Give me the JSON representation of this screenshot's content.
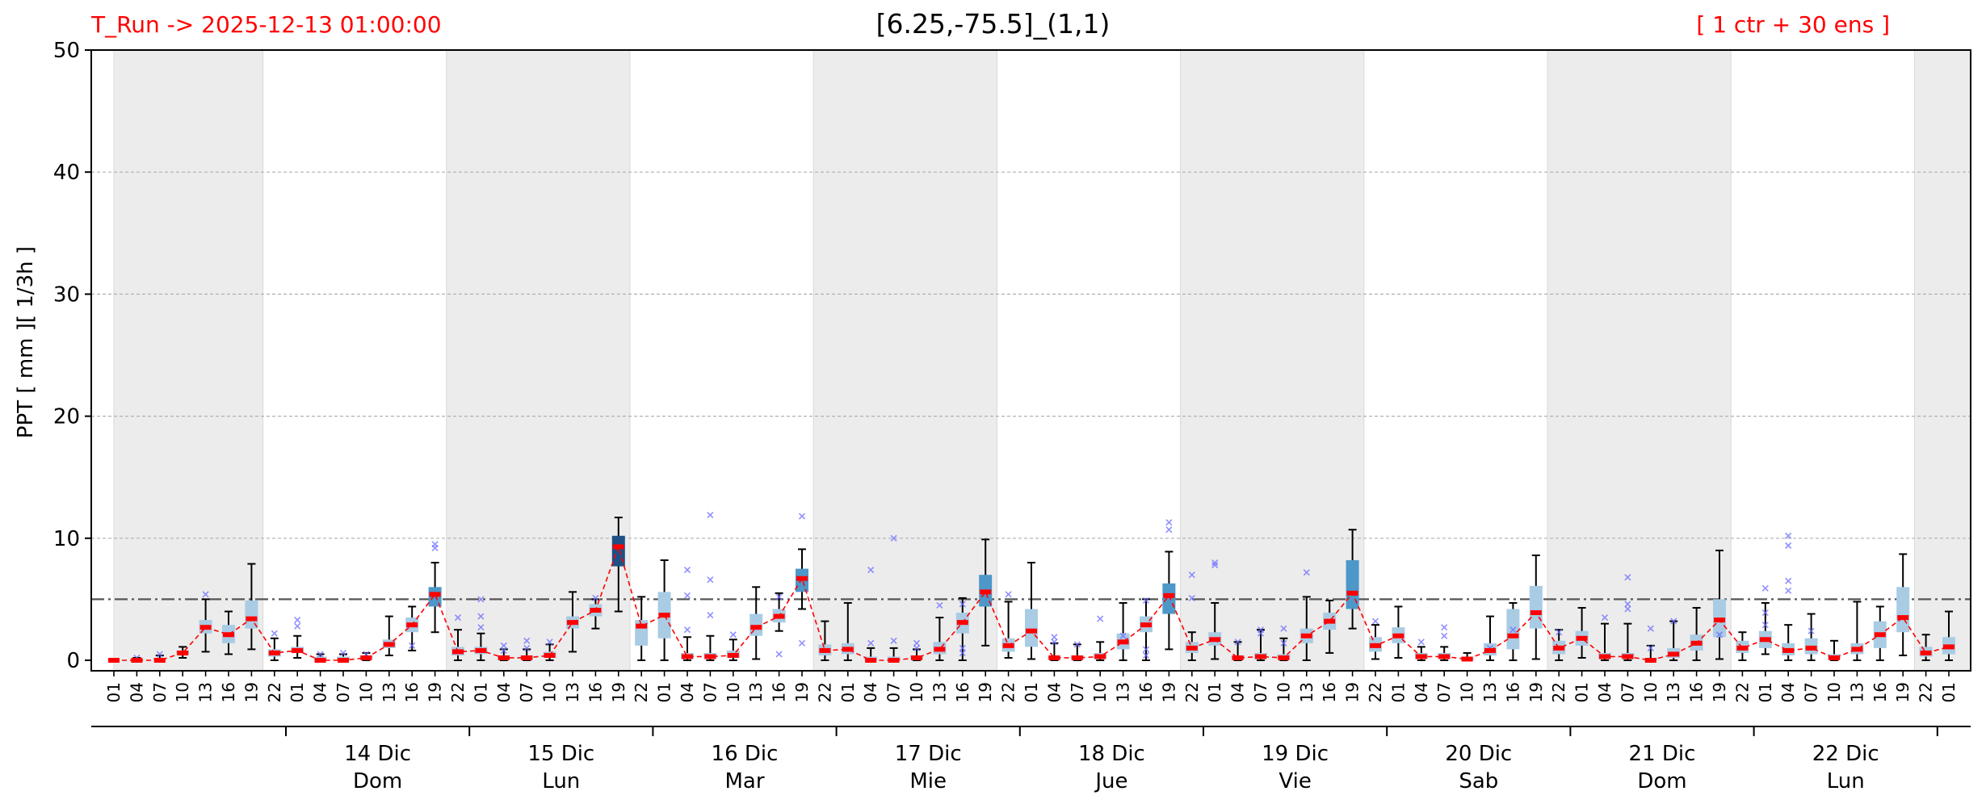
{
  "header": {
    "left": "T_Run -> 2025-12-13  01:00:00",
    "center": "[6.25,-75.5]_(1,1)",
    "right": "[ 1 ctr + 30 ens ]"
  },
  "colors": {
    "median_line": "#ff0000",
    "median_mark": "#ff0000",
    "whisker": "#000000",
    "outlier": "#6b6bff",
    "threshold": "#555555",
    "night_shade": "#ececec",
    "box_light": "#a9cce4",
    "box_mid": "#4d97c9",
    "box_dark": "#1e4f85",
    "header_text": "#ff0000"
  },
  "chart_data": {
    "type": "box",
    "ylabel": "PPT  [ mm ][ 1/3h ]",
    "ylim": [
      0,
      50
    ],
    "yticks": [
      0,
      10,
      20,
      30,
      40,
      50
    ],
    "grid": true,
    "threshold": 5,
    "hours": [
      "01",
      "04",
      "07",
      "10",
      "13",
      "16",
      "19",
      "22"
    ],
    "days": [
      {
        "date": "",
        "weekday": ""
      },
      {
        "date": "14 Dic",
        "weekday": "Dom"
      },
      {
        "date": "15 Dic",
        "weekday": "Lun"
      },
      {
        "date": "16 Dic",
        "weekday": "Mar"
      },
      {
        "date": "17 Dic",
        "weekday": "Mie"
      },
      {
        "date": "18 Dic",
        "weekday": "Jue"
      },
      {
        "date": "19 Dic",
        "weekday": "Vie"
      },
      {
        "date": "20 Dic",
        "weekday": "Sab"
      },
      {
        "date": "21 Dic",
        "weekday": "Dom"
      },
      {
        "date": "22 Dic",
        "weekday": "Lun"
      }
    ],
    "final_step": "01",
    "median": [
      0.0,
      0.0,
      0.0,
      0.6,
      2.7,
      2.1,
      3.4,
      0.6,
      0.8,
      0.0,
      0.0,
      0.2,
      1.3,
      2.9,
      5.4,
      0.7,
      0.8,
      0.2,
      0.2,
      0.4,
      3.1,
      4.1,
      9.3,
      2.8,
      3.7,
      0.3,
      0.3,
      0.4,
      2.7,
      3.6,
      6.7,
      0.8,
      0.9,
      0.0,
      0.0,
      0.2,
      0.9,
      3.1,
      5.6,
      1.2,
      2.4,
      0.2,
      0.2,
      0.3,
      1.5,
      2.9,
      5.3,
      1.0,
      1.7,
      0.2,
      0.3,
      0.2,
      2.0,
      3.2,
      5.5,
      1.2,
      2.0,
      0.3,
      0.3,
      0.1,
      0.8,
      2.0,
      3.9,
      1.0,
      1.8,
      0.3,
      0.3,
      0.0,
      0.5,
      1.4,
      3.3,
      1.0,
      1.7,
      0.8,
      1.0,
      0.2,
      0.9,
      2.1,
      3.5,
      0.6,
      1.1
    ],
    "whisker_low": [
      0,
      0,
      0,
      0.2,
      0.7,
      0.5,
      0.9,
      0,
      0.2,
      0,
      0,
      0,
      0.4,
      0.8,
      2.3,
      0,
      0,
      0,
      0,
      0,
      0.7,
      2.6,
      4.0,
      0,
      0,
      0,
      0,
      0,
      0.1,
      2.4,
      4.2,
      0,
      0,
      0,
      0,
      0,
      0,
      0,
      1.2,
      0.2,
      0.1,
      0,
      0,
      0,
      0,
      0,
      0.9,
      0,
      0.1,
      0,
      0,
      0,
      0,
      0.6,
      2.6,
      0.1,
      0.2,
      0,
      0,
      0,
      0,
      0,
      0.1,
      0,
      0.2,
      0,
      0,
      0,
      0,
      0,
      0.1,
      0,
      0.5,
      0,
      0,
      0,
      0,
      0,
      0.4,
      0,
      0
    ],
    "q1": [
      0,
      0,
      0,
      0.5,
      2.2,
      1.4,
      2.6,
      0.3,
      0.6,
      0,
      0,
      0.1,
      1.0,
      2.3,
      4.4,
      0.4,
      0.5,
      0.1,
      0.1,
      0.2,
      2.6,
      3.6,
      7.7,
      1.2,
      1.8,
      0.1,
      0.1,
      0.2,
      2.0,
      3.1,
      5.6,
      0.4,
      0.5,
      0,
      0,
      0.1,
      0.5,
      2.2,
      4.4,
      0.7,
      1.1,
      0.1,
      0.1,
      0.1,
      0.9,
      2.3,
      3.8,
      0.6,
      1.2,
      0.1,
      0.1,
      0.1,
      1.4,
      2.5,
      4.2,
      0.7,
      1.4,
      0.1,
      0.1,
      0,
      0.4,
      0.9,
      2.6,
      0.5,
      1.2,
      0.1,
      0.1,
      0,
      0.2,
      0.8,
      1.9,
      0.6,
      1.0,
      0.4,
      0.5,
      0.1,
      0.5,
      1.0,
      2.3,
      0.3,
      0.5
    ],
    "q3": [
      0.05,
      0.1,
      0.2,
      0.8,
      3.3,
      2.9,
      4.9,
      0.9,
      1.1,
      0.3,
      0.3,
      0.4,
      1.7,
      3.5,
      6.0,
      1.1,
      1.1,
      0.4,
      0.4,
      0.7,
      3.6,
      4.6,
      10.2,
      3.3,
      5.6,
      0.6,
      0.6,
      0.8,
      3.8,
      4.2,
      7.5,
      1.3,
      1.4,
      0.3,
      0.3,
      0.4,
      1.5,
      3.9,
      7.0,
      1.8,
      4.2,
      0.4,
      0.4,
      0.6,
      2.2,
      3.6,
      6.3,
      1.5,
      2.3,
      0.4,
      0.6,
      0.5,
      2.6,
      3.9,
      8.2,
      1.9,
      2.7,
      0.6,
      0.6,
      0.3,
      1.4,
      4.2,
      6.1,
      1.6,
      2.4,
      0.6,
      0.6,
      0.2,
      1.0,
      2.1,
      5.0,
      1.6,
      2.4,
      1.4,
      1.8,
      0.5,
      1.4,
      3.2,
      6.0,
      1.1,
      1.9
    ],
    "whisker_high": [
      0.1,
      0.2,
      0.4,
      1.1,
      5.0,
      4.0,
      7.9,
      1.8,
      2.0,
      0.5,
      0.5,
      0.6,
      3.6,
      4.4,
      8.0,
      2.5,
      2.2,
      0.9,
      0.9,
      1.3,
      5.6,
      5.0,
      11.7,
      5.2,
      8.2,
      1.9,
      2.0,
      1.7,
      6.0,
      5.5,
      9.1,
      3.2,
      4.7,
      1.0,
      1.0,
      0.9,
      3.5,
      5.1,
      9.9,
      4.8,
      8.0,
      1.4,
      1.3,
      1.5,
      4.7,
      5.0,
      8.9,
      2.3,
      4.7,
      1.5,
      2.5,
      1.8,
      5.2,
      4.9,
      10.7,
      2.9,
      4.4,
      1.1,
      1.1,
      0.6,
      3.6,
      4.7,
      8.6,
      2.5,
      4.3,
      3.0,
      3.0,
      1.2,
      3.2,
      4.3,
      9.0,
      2.3,
      4.7,
      2.9,
      3.8,
      1.6,
      4.8,
      4.4,
      8.7,
      2.1,
      4.0
    ],
    "box_shade": [
      "l",
      "l",
      "l",
      "l",
      "l",
      "l",
      "l",
      "l",
      "l",
      "l",
      "l",
      "l",
      "l",
      "l",
      "m",
      "l",
      "l",
      "l",
      "l",
      "l",
      "l",
      "l",
      "d",
      "l",
      "l",
      "l",
      "l",
      "l",
      "l",
      "l",
      "m",
      "l",
      "l",
      "l",
      "l",
      "l",
      "l",
      "l",
      "m",
      "l",
      "l",
      "l",
      "l",
      "l",
      "l",
      "l",
      "m",
      "l",
      "l",
      "l",
      "l",
      "l",
      "l",
      "l",
      "m",
      "l",
      "l",
      "l",
      "l",
      "l",
      "l",
      "l",
      "l",
      "l",
      "l",
      "l",
      "l",
      "l",
      "l",
      "l",
      "l",
      "l",
      "l",
      "l",
      "l",
      "l",
      "l",
      "l",
      "l",
      "l",
      "l"
    ],
    "outliers": [
      [
        1,
        0.2
      ],
      [
        2,
        0.5
      ],
      [
        4,
        5.4
      ],
      [
        7,
        2.2
      ],
      [
        8,
        2.8
      ],
      [
        8,
        3.3
      ],
      [
        9,
        0.5
      ],
      [
        10,
        0.6
      ],
      [
        11,
        0.5
      ],
      [
        13,
        1.2
      ],
      [
        14,
        9.2
      ],
      [
        14,
        9.5
      ],
      [
        15,
        3.5
      ],
      [
        16,
        5.0
      ],
      [
        16,
        3.6
      ],
      [
        16,
        2.7
      ],
      [
        17,
        1.2
      ],
      [
        17,
        0.8
      ],
      [
        18,
        1.6
      ],
      [
        18,
        1.0
      ],
      [
        19,
        1.5
      ],
      [
        21,
        5.1
      ],
      [
        25,
        7.4
      ],
      [
        25,
        5.3
      ],
      [
        25,
        2.5
      ],
      [
        26,
        11.9
      ],
      [
        26,
        6.6
      ],
      [
        26,
        3.7
      ],
      [
        27,
        2.1
      ],
      [
        29,
        0.5
      ],
      [
        29,
        5.2
      ],
      [
        30,
        11.8
      ],
      [
        30,
        1.4
      ],
      [
        33,
        7.4
      ],
      [
        33,
        1.4
      ],
      [
        34,
        10.0
      ],
      [
        34,
        1.6
      ],
      [
        35,
        1.0
      ],
      [
        35,
        1.4
      ],
      [
        36,
        4.5
      ],
      [
        37,
        4.6
      ],
      [
        37,
        1.0
      ],
      [
        37,
        0.6
      ],
      [
        39,
        5.4
      ],
      [
        41,
        1.5
      ],
      [
        41,
        1.9
      ],
      [
        42,
        1.3
      ],
      [
        43,
        3.4
      ],
      [
        44,
        2.0
      ],
      [
        45,
        4.9
      ],
      [
        45,
        0.9
      ],
      [
        45,
        0.4
      ],
      [
        46,
        11.3
      ],
      [
        46,
        10.7
      ],
      [
        47,
        5.1
      ],
      [
        47,
        7.0
      ],
      [
        48,
        8.0
      ],
      [
        48,
        7.8
      ],
      [
        49,
        1.5
      ],
      [
        50,
        2.5
      ],
      [
        50,
        2.2
      ],
      [
        51,
        2.6
      ],
      [
        51,
        1.4
      ],
      [
        52,
        7.2
      ],
      [
        55,
        3.2
      ],
      [
        57,
        1.5
      ],
      [
        58,
        2.7
      ],
      [
        58,
        2.0
      ],
      [
        60,
        1.0
      ],
      [
        61,
        2.5
      ],
      [
        63,
        2.3
      ],
      [
        65,
        3.5
      ],
      [
        66,
        6.8
      ],
      [
        66,
        4.6
      ],
      [
        66,
        4.2
      ],
      [
        67,
        2.6
      ],
      [
        67,
        1.0
      ],
      [
        68,
        3.2
      ],
      [
        70,
        2.1
      ],
      [
        72,
        5.9
      ],
      [
        72,
        3.9
      ],
      [
        72,
        2.9
      ],
      [
        73,
        10.2
      ],
      [
        73,
        9.4
      ],
      [
        73,
        6.5
      ],
      [
        73,
        5.7
      ],
      [
        74,
        2.4
      ]
    ]
  }
}
